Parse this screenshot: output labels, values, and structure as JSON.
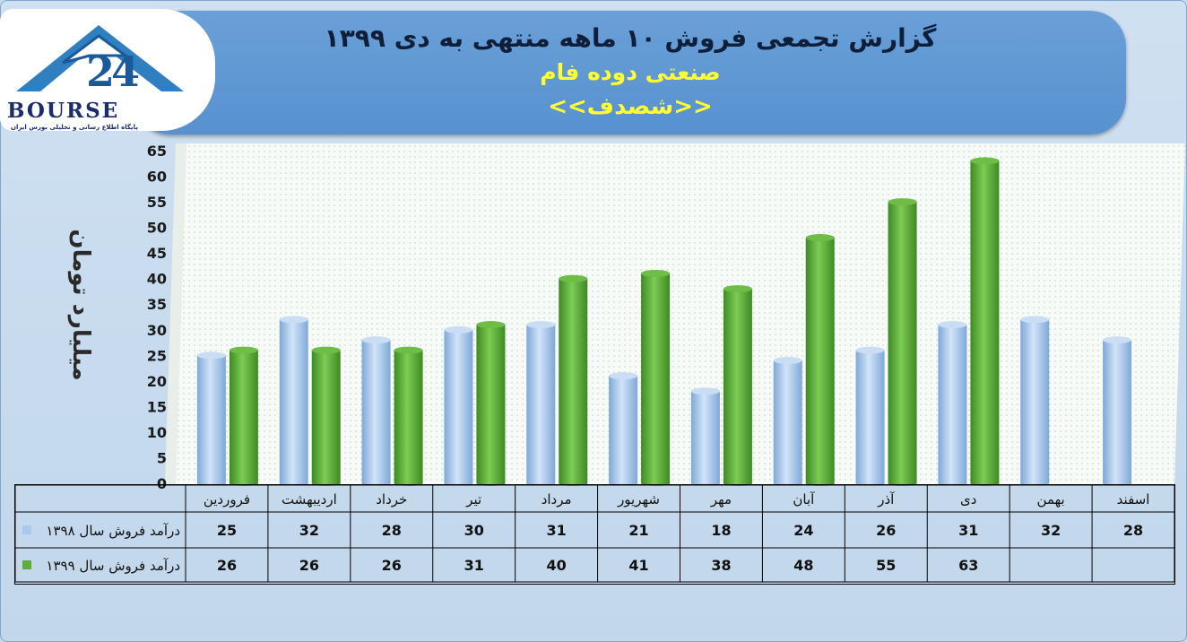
{
  "header": {
    "title_line1": "گزارش تجمعی فروش ۱۰ ماهه منتهی به دی ۱۳۹۹",
    "title_line2": "صنعتی دوده فام",
    "title_line3": "<<شصدف>>"
  },
  "logo": {
    "word": "BOURSE",
    "tagline": "پایگاه اطلاع رسانی و تحلیلی بورس ایران"
  },
  "colors": {
    "series_1398": "#a9c8ee",
    "series_1399": "#5eac3a",
    "title_bg": "#5b94d1",
    "title_yellow": "#ffff33"
  },
  "chart_data": {
    "type": "bar",
    "ylabel": "میلیارد تومان",
    "ylim": [
      0,
      65
    ],
    "yticks": [
      0,
      5,
      10,
      15,
      20,
      25,
      30,
      35,
      40,
      45,
      50,
      55,
      60,
      65
    ],
    "categories": [
      "فروردین",
      "اردیبهشت",
      "خرداد",
      "تیر",
      "مرداد",
      "شهریور",
      "مهر",
      "آبان",
      "آذر",
      "دی",
      "بهمن",
      "اسفند"
    ],
    "series": [
      {
        "name": "درآمد فروش سال ۱۳۹۸",
        "values": [
          25,
          32,
          28,
          30,
          31,
          21,
          18,
          24,
          26,
          31,
          32,
          28
        ]
      },
      {
        "name": "درآمد فروش سال ۱۳۹۹",
        "values": [
          26,
          26,
          26,
          31,
          40,
          41,
          38,
          48,
          55,
          63,
          null,
          null
        ]
      }
    ],
    "grid": "dotted",
    "legend": "data-table"
  }
}
